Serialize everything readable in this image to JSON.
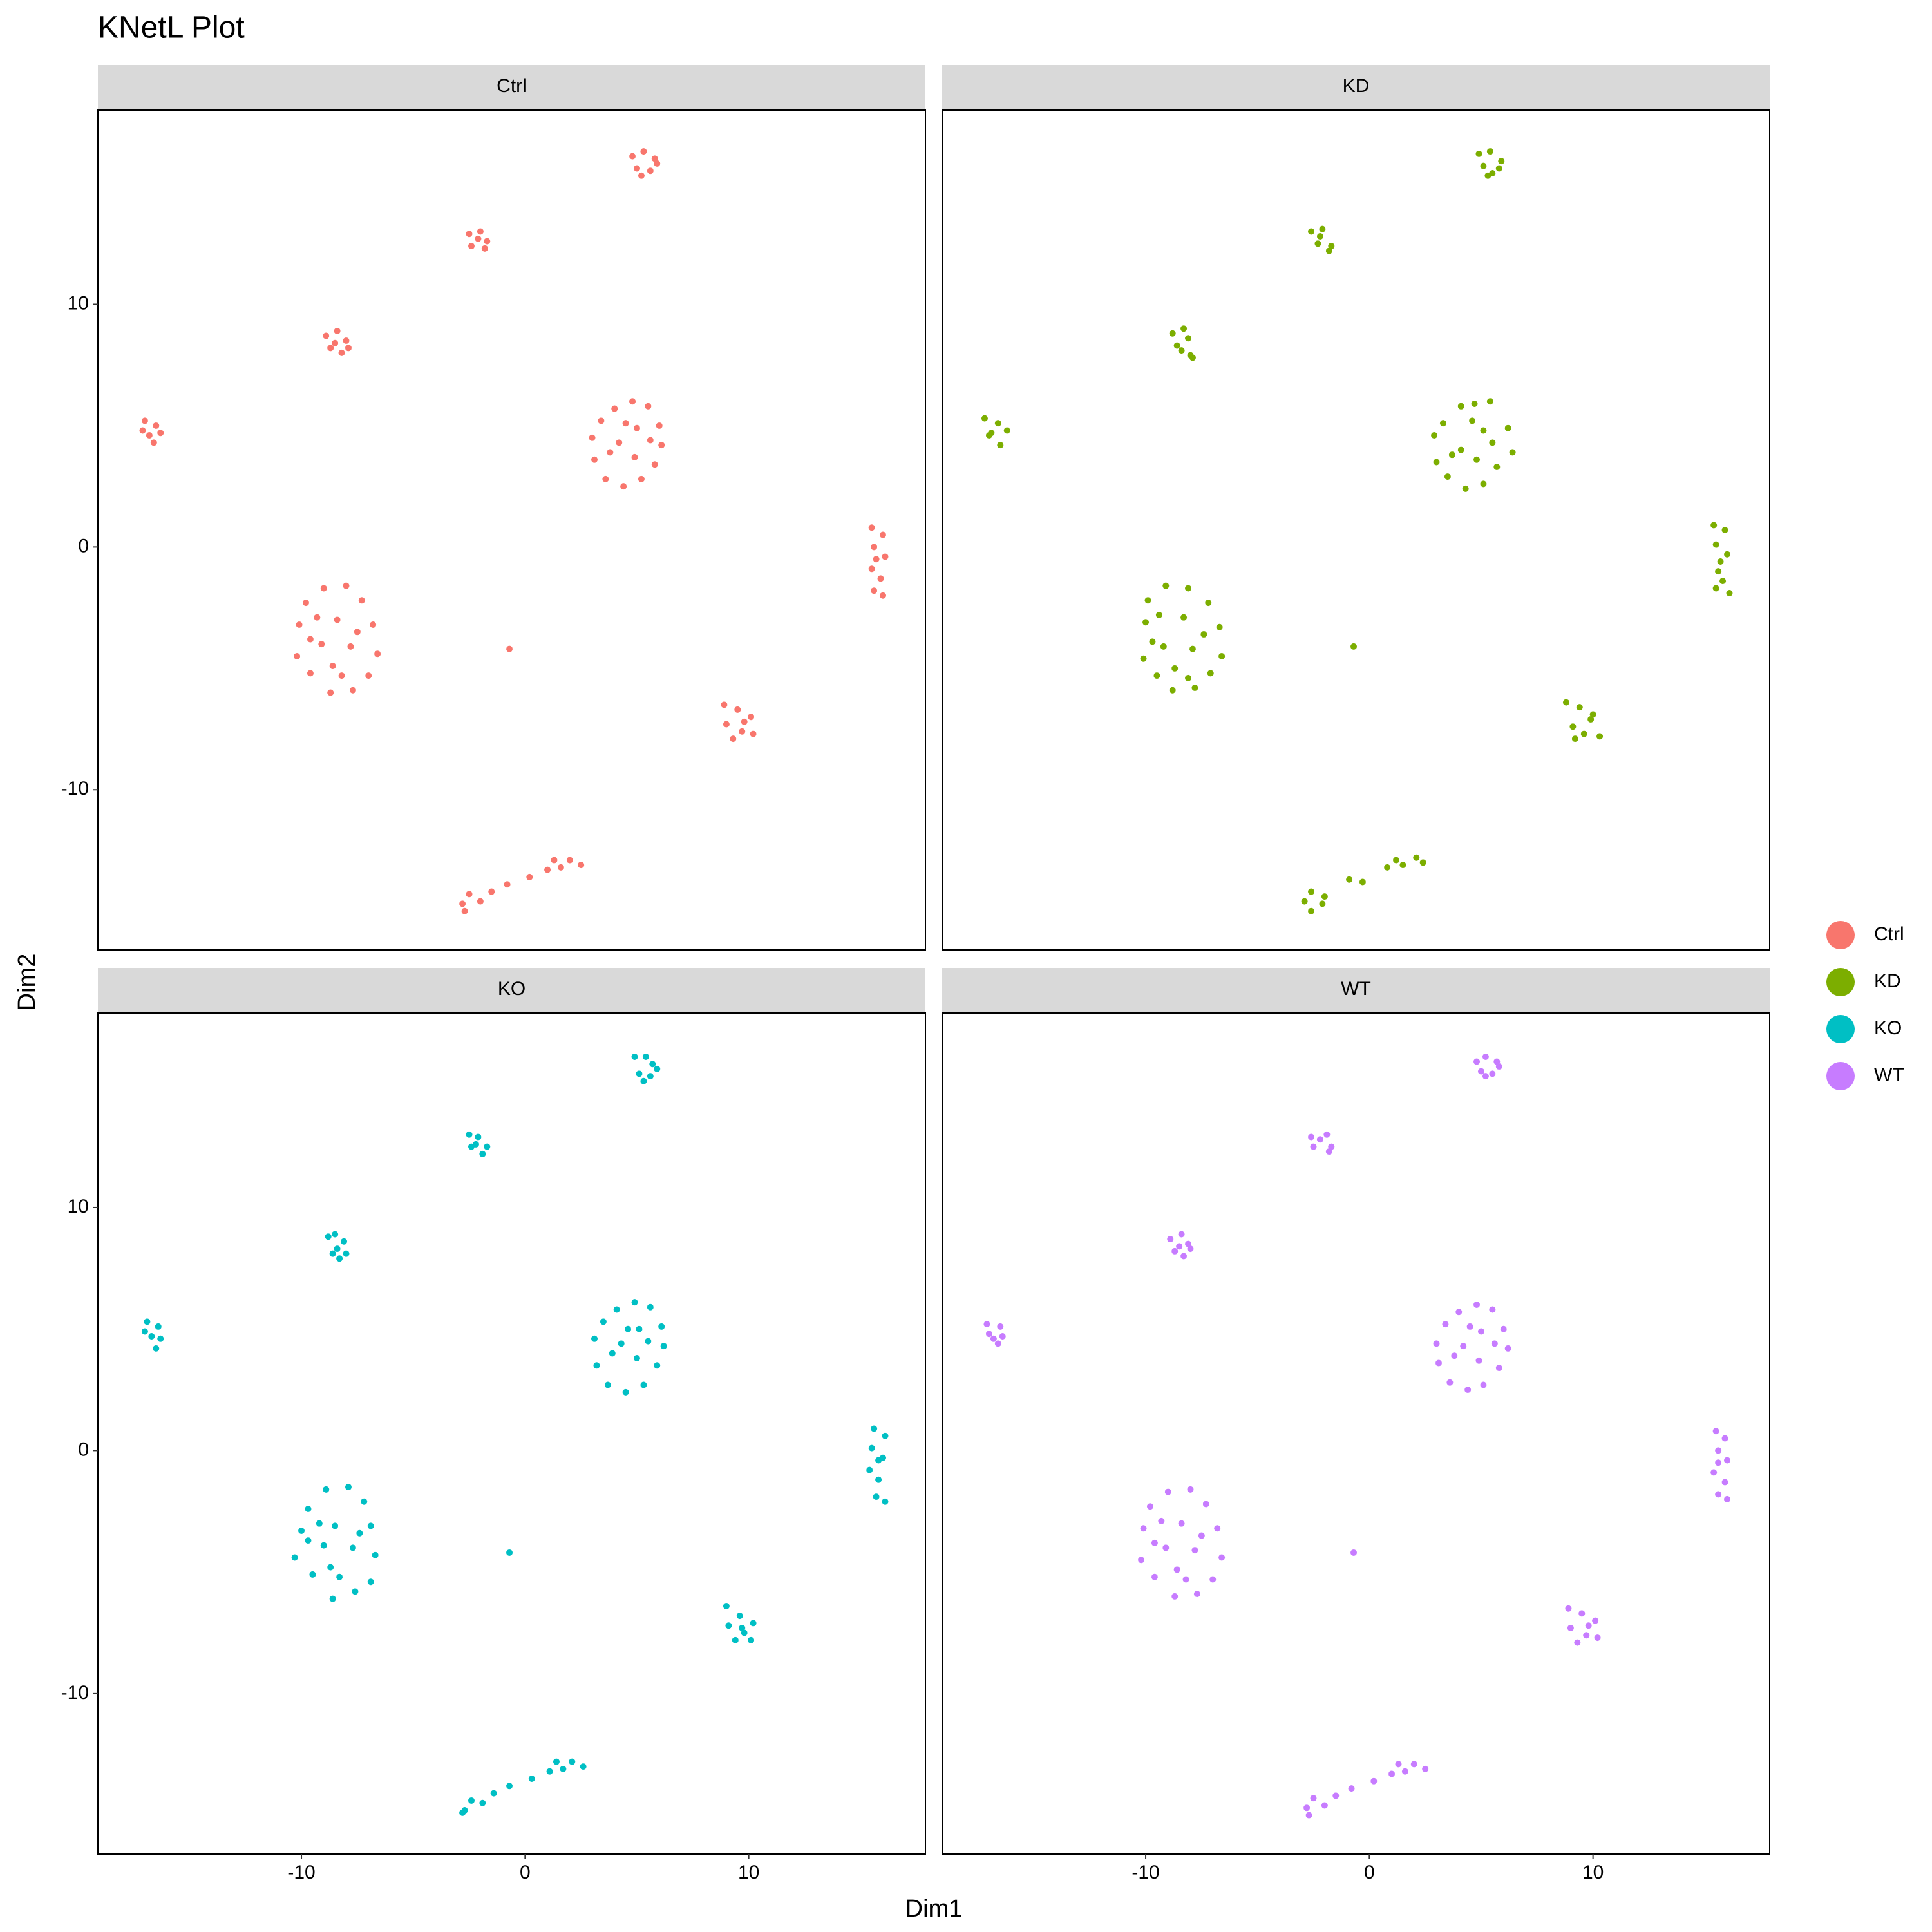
{
  "chart_data": {
    "type": "scatter",
    "title": "KNetL Plot",
    "x_label": "Dim1",
    "y_label": "Dim2",
    "xlim": [
      -19.1,
      17.9
    ],
    "ylim": [
      -16.6,
      18.0
    ],
    "xticks": [
      -10,
      0,
      10
    ],
    "yticks": [
      -10,
      0,
      10
    ],
    "grid": false,
    "legend": "right",
    "series": [
      {
        "name": "Ctrl",
        "color": "#F8766D",
        "x": [
          4.8,
          5.3,
          5.8,
          5.0,
          5.6,
          5.9,
          5.2,
          -2.5,
          -2.1,
          -1.8,
          -2.4,
          -2.0,
          -1.7,
          -8.9,
          -8.4,
          -8.0,
          -8.7,
          -8.2,
          -8.5,
          -7.9,
          -17.0,
          -16.5,
          -16.8,
          -16.3,
          -16.6,
          -17.1,
          3.0,
          3.4,
          4.0,
          4.8,
          5.5,
          6.0,
          6.1,
          5.8,
          5.2,
          4.4,
          3.6,
          3.1,
          4.2,
          4.9,
          3.8,
          5.0,
          4.5,
          5.6,
          15.5,
          16.0,
          15.6,
          16.1,
          15.5,
          15.9,
          15.6,
          16.0,
          15.7,
          -10.1,
          -10.2,
          -9.8,
          -9.0,
          -8.0,
          -7.3,
          -6.8,
          -6.6,
          -7.0,
          -7.7,
          -8.7,
          -9.6,
          -9.1,
          -8.4,
          -7.8,
          -8.6,
          -9.3,
          -7.5,
          -8.2,
          -9.6,
          -0.7,
          8.9,
          9.5,
          10.1,
          9.0,
          9.7,
          10.2,
          9.3,
          9.8,
          -2.8,
          -2.5,
          -2.0,
          -1.5,
          -0.8,
          0.2,
          1.0,
          1.6,
          2.0,
          2.5,
          1.3,
          -2.7
        ],
        "values": [
          16.1,
          16.3,
          16.0,
          15.6,
          15.5,
          15.8,
          15.3,
          12.9,
          12.7,
          12.3,
          12.4,
          13.0,
          12.6,
          8.7,
          8.9,
          8.5,
          8.2,
          8.0,
          8.4,
          8.2,
          5.2,
          5.0,
          4.6,
          4.7,
          4.3,
          4.8,
          4.5,
          5.2,
          5.7,
          6.0,
          5.8,
          5.0,
          4.2,
          3.4,
          2.8,
          2.5,
          2.8,
          3.6,
          4.3,
          3.7,
          3.9,
          4.9,
          5.1,
          4.4,
          0.8,
          0.5,
          0.0,
          -0.4,
          -0.9,
          -1.3,
          -1.8,
          -2.0,
          -0.5,
          -3.2,
          -4.5,
          -2.3,
          -1.7,
          -1.6,
          -2.2,
          -3.2,
          -4.4,
          -5.3,
          -5.9,
          -6.0,
          -5.2,
          -4.0,
          -3.0,
          -4.1,
          -4.9,
          -2.9,
          -3.5,
          -5.3,
          -3.8,
          -4.2,
          -6.5,
          -6.7,
          -7.0,
          -7.3,
          -7.6,
          -7.7,
          -7.9,
          -7.2,
          -14.7,
          -14.3,
          -14.6,
          -14.2,
          -13.9,
          -13.6,
          -13.3,
          -13.2,
          -12.9,
          -13.1,
          -12.9,
          -15.0
        ]
      },
      {
        "name": "KD",
        "color": "#7CAE00",
        "x": [
          4.9,
          5.4,
          5.9,
          5.1,
          5.5,
          5.8,
          5.3,
          -2.6,
          -2.2,
          -1.7,
          -2.3,
          -2.1,
          -1.8,
          -8.8,
          -8.3,
          -8.1,
          -8.6,
          -8.0,
          -8.4,
          -7.9,
          -17.2,
          -16.6,
          -16.9,
          -16.2,
          -16.5,
          -17.0,
          2.9,
          3.3,
          4.1,
          4.7,
          5.4,
          6.2,
          6.4,
          5.7,
          5.1,
          4.3,
          3.5,
          3.0,
          4.1,
          4.8,
          3.7,
          5.1,
          4.6,
          5.5,
          15.4,
          15.9,
          15.5,
          16.0,
          15.6,
          15.8,
          15.5,
          16.1,
          15.7,
          -10.0,
          -10.1,
          -9.9,
          -9.1,
          -8.1,
          -7.2,
          -6.7,
          -6.6,
          -7.1,
          -7.8,
          -8.8,
          -9.5,
          -9.2,
          -8.3,
          -7.9,
          -8.7,
          -9.4,
          -7.4,
          -8.1,
          -9.7,
          -0.7,
          8.8,
          9.4,
          10.0,
          9.1,
          9.6,
          10.3,
          9.2,
          9.9,
          -2.9,
          -2.6,
          -2.1,
          -2.0,
          -0.9,
          -0.3,
          0.8,
          1.5,
          2.1,
          2.4,
          1.2,
          -2.6
        ],
        "values": [
          16.2,
          16.3,
          15.9,
          15.7,
          15.4,
          15.6,
          15.3,
          13.0,
          12.8,
          12.4,
          12.5,
          13.1,
          12.2,
          8.8,
          9.0,
          8.6,
          8.3,
          7.9,
          8.1,
          7.8,
          5.3,
          5.1,
          4.7,
          4.8,
          4.2,
          4.6,
          4.6,
          5.1,
          5.8,
          5.9,
          6.0,
          4.9,
          3.9,
          3.3,
          2.6,
          2.4,
          2.9,
          3.5,
          4.0,
          3.6,
          3.8,
          4.8,
          5.2,
          4.3,
          0.9,
          0.7,
          0.1,
          -0.3,
          -1.0,
          -1.4,
          -1.7,
          -1.9,
          -0.6,
          -3.1,
          -4.6,
          -2.2,
          -1.6,
          -1.7,
          -2.3,
          -3.3,
          -4.5,
          -5.2,
          -5.8,
          -5.9,
          -5.3,
          -4.1,
          -2.9,
          -4.2,
          -5.0,
          -2.8,
          -3.6,
          -5.4,
          -3.9,
          -4.1,
          -6.4,
          -6.6,
          -6.9,
          -7.4,
          -7.7,
          -7.8,
          -7.9,
          -7.1,
          -14.6,
          -14.2,
          -14.7,
          -14.4,
          -13.7,
          -13.8,
          -13.2,
          -13.1,
          -12.8,
          -13.0,
          -12.9,
          -15.0
        ]
      },
      {
        "name": "KO",
        "color": "#00BFC4",
        "x": [
          4.9,
          5.4,
          5.7,
          5.1,
          5.6,
          5.9,
          5.3,
          -2.5,
          -2.2,
          -1.9,
          -2.4,
          -2.1,
          -1.7,
          -8.8,
          -8.5,
          -8.1,
          -8.6,
          -8.3,
          -8.4,
          -8.0,
          -16.9,
          -16.4,
          -16.7,
          -16.3,
          -16.5,
          -17.0,
          3.1,
          3.5,
          4.1,
          4.9,
          5.6,
          6.1,
          6.2,
          5.9,
          5.3,
          4.5,
          3.7,
          3.2,
          4.3,
          5.0,
          3.9,
          5.1,
          4.6,
          5.5,
          15.6,
          16.1,
          15.5,
          16.0,
          15.4,
          15.8,
          15.7,
          16.1,
          15.8,
          -10.0,
          -10.3,
          -9.7,
          -8.9,
          -7.9,
          -7.2,
          -6.9,
          -6.7,
          -6.9,
          -7.6,
          -8.6,
          -9.5,
          -9.0,
          -8.5,
          -7.7,
          -8.7,
          -9.2,
          -7.4,
          -8.3,
          -9.7,
          -0.7,
          9.0,
          9.6,
          10.2,
          9.1,
          9.8,
          10.1,
          9.4,
          9.7,
          -2.7,
          -2.4,
          -1.9,
          -1.4,
          -0.7,
          0.3,
          1.1,
          1.7,
          2.1,
          2.6,
          1.4,
          -2.8
        ],
        "values": [
          16.2,
          16.2,
          15.9,
          15.5,
          15.4,
          15.7,
          15.2,
          13.0,
          12.6,
          12.2,
          12.5,
          12.9,
          12.5,
          8.8,
          8.9,
          8.6,
          8.1,
          7.9,
          8.3,
          8.1,
          5.3,
          5.1,
          4.7,
          4.6,
          4.2,
          4.9,
          4.6,
          5.3,
          5.8,
          6.1,
          5.9,
          5.1,
          4.3,
          3.5,
          2.7,
          2.4,
          2.7,
          3.5,
          4.4,
          3.8,
          4.0,
          5.0,
          5.0,
          4.5,
          0.9,
          0.6,
          0.1,
          -0.3,
          -0.8,
          -1.2,
          -1.9,
          -2.1,
          -0.4,
          -3.3,
          -4.4,
          -2.4,
          -1.6,
          -1.5,
          -2.1,
          -3.1,
          -4.3,
          -5.4,
          -5.8,
          -6.1,
          -5.1,
          -3.9,
          -3.1,
          -4.0,
          -4.8,
          -3.0,
          -3.4,
          -5.2,
          -3.7,
          -4.2,
          -6.4,
          -6.8,
          -7.1,
          -7.2,
          -7.5,
          -7.8,
          -7.8,
          -7.3,
          -14.8,
          -14.4,
          -14.5,
          -14.1,
          -13.8,
          -13.5,
          -13.2,
          -13.1,
          -12.8,
          -13.0,
          -12.8,
          -14.9
        ]
      },
      {
        "name": "WT",
        "color": "#C77CFF",
        "x": [
          4.8,
          5.2,
          5.7,
          5.0,
          5.5,
          5.8,
          5.2,
          -2.6,
          -2.2,
          -1.8,
          -2.5,
          -1.9,
          -1.7,
          -8.9,
          -8.4,
          -8.1,
          -8.7,
          -8.3,
          -8.5,
          -8.0,
          -17.1,
          -16.5,
          -16.8,
          -16.4,
          -16.6,
          -17.0,
          3.0,
          3.4,
          4.0,
          4.8,
          5.5,
          6.0,
          6.2,
          5.8,
          5.1,
          4.4,
          3.6,
          3.1,
          4.2,
          4.9,
          3.8,
          5.0,
          4.5,
          5.6,
          15.5,
          15.9,
          15.6,
          16.0,
          15.4,
          15.9,
          15.6,
          16.0,
          15.6,
          -10.1,
          -10.2,
          -9.8,
          -9.0,
          -8.0,
          -7.3,
          -6.8,
          -6.6,
          -7.0,
          -7.7,
          -8.7,
          -9.6,
          -9.1,
          -8.4,
          -7.8,
          -8.6,
          -9.3,
          -7.5,
          -8.2,
          -9.6,
          -0.7,
          8.9,
          9.5,
          10.1,
          9.0,
          9.7,
          10.2,
          9.3,
          9.8,
          -2.8,
          -2.5,
          -2.0,
          -1.5,
          -0.8,
          0.2,
          1.0,
          1.6,
          2.0,
          2.5,
          1.3,
          -2.7
        ],
        "values": [
          16.0,
          16.2,
          16.0,
          15.6,
          15.5,
          15.8,
          15.4,
          12.9,
          12.8,
          12.3,
          12.5,
          13.0,
          12.5,
          8.7,
          8.9,
          8.5,
          8.2,
          8.0,
          8.4,
          8.3,
          5.2,
          5.1,
          4.6,
          4.7,
          4.4,
          4.8,
          4.4,
          5.2,
          5.7,
          6.0,
          5.8,
          5.0,
          4.2,
          3.4,
          2.7,
          2.5,
          2.8,
          3.6,
          4.3,
          3.7,
          3.9,
          4.9,
          5.1,
          4.4,
          0.8,
          0.5,
          0.0,
          -0.4,
          -0.9,
          -1.3,
          -1.8,
          -2.0,
          -0.5,
          -3.2,
          -4.5,
          -2.3,
          -1.7,
          -1.6,
          -2.2,
          -3.2,
          -4.4,
          -5.3,
          -5.9,
          -6.0,
          -5.2,
          -4.0,
          -3.0,
          -4.1,
          -4.9,
          -2.9,
          -3.5,
          -5.3,
          -3.8,
          -4.2,
          -6.5,
          -6.7,
          -7.0,
          -7.3,
          -7.6,
          -7.7,
          -7.9,
          -7.2,
          -14.7,
          -14.3,
          -14.6,
          -14.2,
          -13.9,
          -13.6,
          -13.3,
          -13.2,
          -12.9,
          -13.1,
          -12.9,
          -15.0
        ]
      }
    ]
  }
}
